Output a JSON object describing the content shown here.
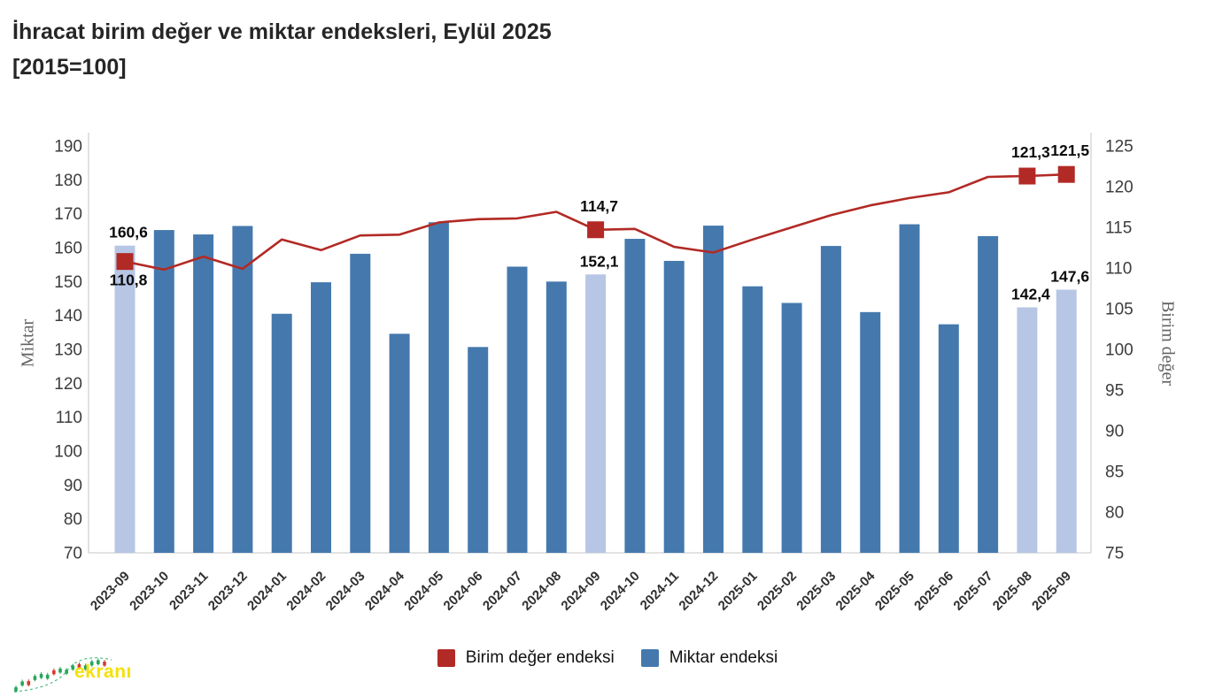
{
  "title": {
    "line1": "İhracat birim değer ve miktar endeksleri, Eylül 2025",
    "line2": "[2015=100]"
  },
  "legend": {
    "items": [
      {
        "label": "Birim değer endeksi",
        "color": "#b22a25"
      },
      {
        "label": "Miktar endeksi",
        "color": "#4579ad"
      }
    ]
  },
  "watermark": {
    "text": "ekranı",
    "color": "#f4e10a"
  },
  "chart_data": {
    "type": "combo-bar-line",
    "categories": [
      "2023-09",
      "2023-10",
      "2023-11",
      "2023-12",
      "2024-01",
      "2024-02",
      "2024-03",
      "2024-04",
      "2024-05",
      "2024-06",
      "2024-07",
      "2024-08",
      "2024-09",
      "2024-10",
      "2024-11",
      "2024-12",
      "2025-01",
      "2025-02",
      "2025-03",
      "2025-04",
      "2025-05",
      "2025-06",
      "2025-07",
      "2025-08",
      "2025-09"
    ],
    "series": [
      {
        "name": "Miktar endeksi",
        "type": "bar",
        "axis": "left",
        "color": "#4579ad",
        "highlight_color": "#b6c6e4",
        "highlighted_indices": [
          0,
          12,
          23,
          24
        ],
        "values": [
          160.6,
          165.2,
          163.9,
          166.4,
          140.5,
          149.8,
          158.2,
          134.6,
          167.5,
          130.7,
          154.4,
          150.0,
          152.1,
          162.6,
          156.1,
          166.5,
          148.6,
          143.7,
          160.5,
          141.0,
          166.9,
          137.4,
          163.4,
          142.4,
          147.6
        ]
      },
      {
        "name": "Birim değer endeksi",
        "type": "line",
        "axis": "right",
        "color": "#b22a25",
        "marker_indices": [
          0,
          12,
          23,
          24
        ],
        "values": [
          110.8,
          109.8,
          111.4,
          109.9,
          113.5,
          112.2,
          114.0,
          114.1,
          115.6,
          116.0,
          116.1,
          116.9,
          114.7,
          114.8,
          112.6,
          111.9,
          113.5,
          115.0,
          116.5,
          117.7,
          118.6,
          119.3,
          121.2,
          121.3,
          121.5
        ]
      }
    ],
    "left_axis": {
      "title": "Miktar",
      "min": 70,
      "max": 190,
      "step": 10
    },
    "right_axis": {
      "title": "Birim değer",
      "min": 75,
      "max": 125,
      "step": 5
    },
    "grid": false,
    "legend_position": "bottom",
    "data_labels": [
      {
        "series": "bar",
        "index": 0,
        "text": "160,6"
      },
      {
        "series": "line",
        "index": 0,
        "text": "110,8",
        "position": "below"
      },
      {
        "series": "bar",
        "index": 12,
        "text": "152,1"
      },
      {
        "series": "line",
        "index": 12,
        "text": "114,7",
        "position": "above"
      },
      {
        "series": "line",
        "index": 23,
        "text": "121,3",
        "position": "above"
      },
      {
        "series": "line",
        "index": 24,
        "text": "121,5",
        "position": "above"
      },
      {
        "series": "bar",
        "index": 23,
        "text": "142,4"
      },
      {
        "series": "bar",
        "index": 24,
        "text": "147,6"
      }
    ]
  }
}
